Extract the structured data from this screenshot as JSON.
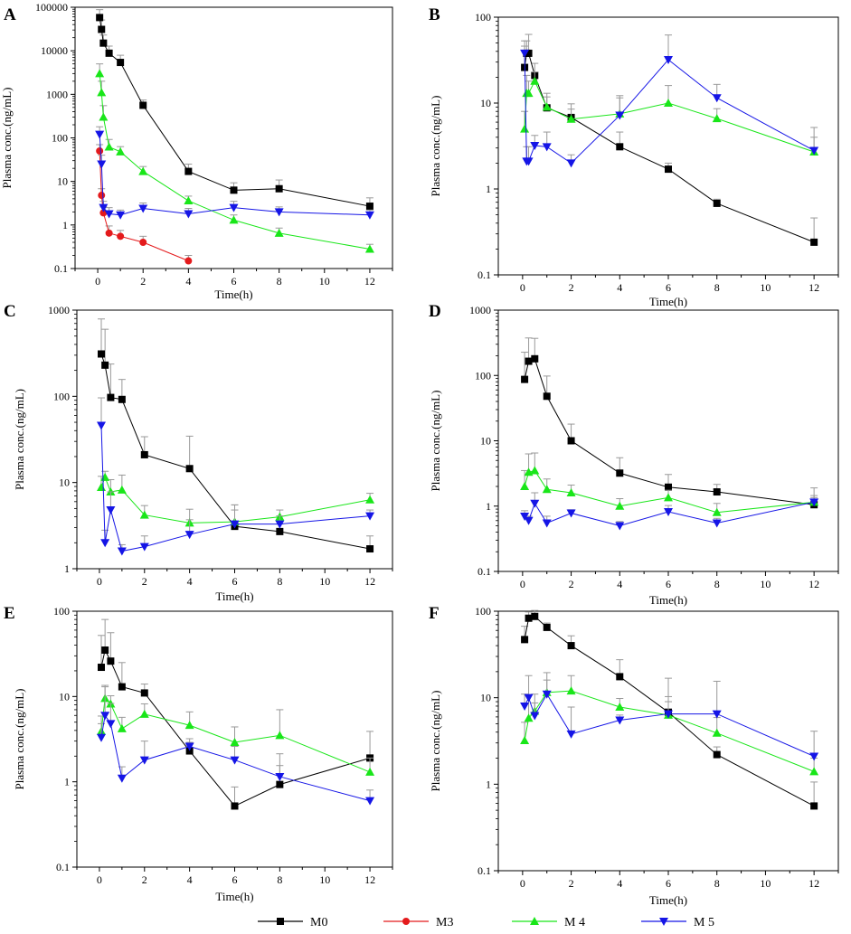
{
  "figure": {
    "legend": [
      {
        "name": "M0",
        "label": "M0",
        "color": "#000000",
        "marker": "square"
      },
      {
        "name": "M3",
        "label": "M3",
        "color": "#e41a1c",
        "marker": "circle"
      },
      {
        "name": "M4",
        "label": "M 4",
        "color": "#19e619",
        "marker": "triangle-up"
      },
      {
        "name": "M5",
        "label": "M 5",
        "color": "#1515e6",
        "marker": "triangle-down"
      }
    ],
    "colors": {
      "M0": "#000000",
      "M3": "#e41a1c",
      "M4": "#19e619",
      "M5": "#1515e6",
      "error_line": "#999999"
    }
  },
  "chart_data": [
    {
      "panel": "A",
      "type": "line",
      "yscale": "log",
      "xlabel": "Time(h)",
      "ylabel": "Plasma conc.(ng/mL)",
      "xlim": [
        -1,
        13
      ],
      "xticks": [
        0,
        2,
        4,
        6,
        8,
        10,
        12
      ],
      "ylim": [
        0.1,
        100000
      ],
      "yticks": [
        0.1,
        1,
        10,
        100,
        1000,
        10000,
        100000
      ],
      "ytick_labels": [
        "0.1",
        "1",
        "10",
        "100",
        "1000",
        "10000",
        "100000"
      ],
      "series": [
        {
          "name": "M0",
          "x": [
            0.083,
            0.167,
            0.25,
            0.5,
            1,
            2,
            4,
            6,
            8,
            12
          ],
          "y": [
            58000,
            31000,
            15000,
            8800,
            5400,
            560,
            17,
            6.3,
            6.8,
            2.7
          ],
          "err": [
            30000,
            20000,
            8000,
            4000,
            2500,
            180,
            8,
            3,
            4,
            1.5
          ]
        },
        {
          "name": "M3",
          "x": [
            0.083,
            0.167,
            0.25,
            0.5,
            1,
            2,
            4
          ],
          "y": [
            50,
            4.8,
            1.9,
            0.65,
            0.55,
            0.4,
            0.15
          ],
          "err": [
            20,
            2,
            0.7,
            0.3,
            0.2,
            0.15,
            0.05
          ]
        },
        {
          "name": "M4",
          "x": [
            0.083,
            0.167,
            0.25,
            0.5,
            1,
            2,
            4,
            6,
            8,
            12
          ],
          "y": [
            3000,
            1100,
            300,
            62,
            48,
            17,
            3.6,
            1.3,
            0.65,
            0.28
          ],
          "err": [
            2000,
            900,
            250,
            30,
            15,
            5,
            1,
            0.4,
            0.2,
            0.08
          ]
        },
        {
          "name": "M5",
          "x": [
            0.083,
            0.167,
            0.25,
            0.5,
            1,
            2,
            4,
            6,
            8,
            12
          ],
          "y": [
            120,
            25,
            2.5,
            1.8,
            1.7,
            2.4,
            1.8,
            2.5,
            2.0,
            1.7
          ],
          "err": [
            60,
            15,
            1.0,
            0.7,
            0.5,
            0.8,
            0.6,
            1.0,
            0.6,
            0.5
          ]
        }
      ]
    },
    {
      "panel": "B",
      "type": "line",
      "yscale": "log",
      "xlabel": "Time(h)",
      "ylabel": "Plasma conc.(ng/mL)",
      "xlim": [
        -1,
        13
      ],
      "xticks": [
        0,
        2,
        4,
        6,
        8,
        10,
        12
      ],
      "ylim": [
        0.1,
        100
      ],
      "yticks": [
        0.1,
        1,
        10,
        100
      ],
      "ytick_labels": [
        "0.1",
        "1",
        "10",
        "100"
      ],
      "series": [
        {
          "name": "M0",
          "x": [
            0.083,
            0.167,
            0.25,
            0.5,
            1,
            2,
            4,
            6,
            8,
            12
          ],
          "y": [
            26,
            38,
            38,
            21,
            8.8,
            6.8,
            3.1,
            1.7,
            0.68,
            0.24
          ],
          "err": [
            20,
            15,
            25,
            8,
            3,
            3,
            1.5,
            0.3,
            0.08,
            0.22
          ]
        },
        {
          "name": "M4",
          "x": [
            0.083,
            0.167,
            0.25,
            0.5,
            1,
            2,
            4,
            6,
            8,
            12
          ],
          "y": [
            5.0,
            13,
            13,
            18,
            9.0,
            6.5,
            7.5,
            10,
            6.6,
            2.7
          ],
          "err": [
            3,
            8,
            5,
            5,
            4,
            2,
            4,
            6,
            2,
            2.5
          ]
        },
        {
          "name": "M5",
          "x": [
            0.083,
            0.167,
            0.25,
            0.5,
            1,
            2,
            4,
            6,
            8,
            12
          ],
          "y": [
            38,
            2.1,
            2.1,
            3.2,
            3.1,
            2.0,
            7.2,
            32,
            11.5,
            2.8
          ],
          "err": [
            15,
            1,
            1,
            1,
            1.5,
            0.5,
            5,
            30,
            5,
            1.2
          ]
        }
      ]
    },
    {
      "panel": "C",
      "type": "line",
      "yscale": "log",
      "xlabel": "Time(h)",
      "ylabel": "Plasma conc.(ng/mL)",
      "xlim": [
        -1,
        13
      ],
      "xticks": [
        0,
        2,
        4,
        6,
        8,
        10,
        12
      ],
      "ylim": [
        1,
        1000
      ],
      "yticks": [
        1,
        10,
        100,
        1000
      ],
      "ytick_labels": [
        "1",
        "10",
        "100",
        "1000"
      ],
      "series": [
        {
          "name": "M0",
          "x": [
            0.083,
            0.25,
            0.5,
            1,
            2,
            4,
            6,
            8,
            12
          ],
          "y": [
            310,
            230,
            97,
            92,
            21,
            14.5,
            3.1,
            2.7,
            1.7
          ],
          "err": [
            480,
            370,
            140,
            65,
            13,
            20,
            2.4,
            0.6,
            0.7
          ]
        },
        {
          "name": "M4",
          "x": [
            0.083,
            0.25,
            0.5,
            1,
            2,
            4,
            6,
            8,
            12
          ],
          "y": [
            8.8,
            11.5,
            7.8,
            8.2,
            4.2,
            3.4,
            3.5,
            4.0,
            6.3
          ],
          "err": [
            3,
            2,
            3,
            4,
            1.2,
            1.5,
            2,
            0.8,
            1.2
          ]
        },
        {
          "name": "M5",
          "x": [
            0.083,
            0.25,
            0.5,
            1,
            2,
            4,
            6,
            8,
            12
          ],
          "y": [
            46,
            2.0,
            4.8,
            1.6,
            1.8,
            2.5,
            3.3,
            3.3,
            4.1
          ],
          "err": [
            50,
            0.8,
            3,
            0.3,
            0.6,
            1.2,
            1.5,
            0.8,
            0.7
          ]
        }
      ]
    },
    {
      "panel": "D",
      "type": "line",
      "yscale": "log",
      "xlabel": "Time(h)",
      "ylabel": "Plasma conc.(ng/mL)",
      "xlim": [
        -1,
        13
      ],
      "xticks": [
        0,
        2,
        4,
        6,
        8,
        10,
        12
      ],
      "ylim": [
        0.1,
        1000
      ],
      "yticks": [
        0.1,
        1,
        10,
        100,
        1000
      ],
      "ytick_labels": [
        "0.1",
        "1",
        "10",
        "100",
        "1000"
      ],
      "series": [
        {
          "name": "M0",
          "x": [
            0.083,
            0.25,
            0.5,
            1,
            2,
            4,
            6,
            8,
            12
          ],
          "y": [
            87,
            165,
            180,
            48,
            10,
            3.2,
            1.95,
            1.65,
            1.05
          ],
          "err": [
            140,
            210,
            190,
            50,
            8,
            2.3,
            1.1,
            0.5,
            0.3
          ]
        },
        {
          "name": "M4",
          "x": [
            0.083,
            0.25,
            0.5,
            1,
            2,
            4,
            6,
            8,
            12
          ],
          "y": [
            2.0,
            3.3,
            3.5,
            1.8,
            1.6,
            1.0,
            1.35,
            0.8,
            1.15
          ],
          "err": [
            1.5,
            3,
            3,
            0.8,
            0.5,
            0.3,
            0.4,
            0.3,
            0.75
          ]
        },
        {
          "name": "M5",
          "x": [
            0.083,
            0.25,
            0.5,
            1,
            2,
            4,
            6,
            8,
            12
          ],
          "y": [
            0.7,
            0.6,
            1.1,
            0.55,
            0.78,
            0.5,
            0.82,
            0.55,
            1.15
          ],
          "err": [
            0.15,
            0.1,
            0.5,
            0.15,
            0.1,
            0.08,
            0.2,
            0.1,
            0.3
          ]
        }
      ]
    },
    {
      "panel": "E",
      "type": "line",
      "yscale": "log",
      "xlabel": "Time(h)",
      "ylabel": "Plasma conc.(ng/mL)",
      "xlim": [
        -1,
        13
      ],
      "xticks": [
        0,
        2,
        4,
        6,
        8,
        10,
        12
      ],
      "ylim": [
        0.1,
        100
      ],
      "yticks": [
        0.1,
        1,
        10,
        100
      ],
      "ytick_labels": [
        "0.1",
        "1",
        "10",
        "100"
      ],
      "series": [
        {
          "name": "M0",
          "x": [
            0.083,
            0.25,
            0.5,
            1,
            2,
            4,
            6,
            8,
            12
          ],
          "y": [
            22,
            35,
            26,
            13,
            11,
            2.3,
            0.52,
            0.93,
            1.9
          ],
          "err": [
            30,
            45,
            30,
            12,
            3,
            0.6,
            0.35,
            1.2,
            2
          ]
        },
        {
          "name": "M4",
          "x": [
            0.083,
            0.25,
            0.5,
            1,
            2,
            4,
            6,
            8,
            12
          ],
          "y": [
            3.9,
            9.5,
            8.2,
            4.2,
            6.2,
            4.6,
            2.9,
            3.5,
            1.3
          ],
          "err": [
            2,
            4,
            2,
            1.5,
            2,
            2,
            1.5,
            3.5,
            0.6
          ]
        },
        {
          "name": "M5",
          "x": [
            0.083,
            0.25,
            0.5,
            1,
            2,
            4,
            6,
            8,
            12
          ],
          "y": [
            3.3,
            6.0,
            4.8,
            1.1,
            1.8,
            2.6,
            1.8,
            1.15,
            0.6
          ],
          "err": [
            1.5,
            7,
            3.5,
            0.4,
            1.2,
            0.6,
            0.8,
            0.4,
            0.2
          ]
        }
      ]
    },
    {
      "panel": "F",
      "type": "line",
      "yscale": "log",
      "xlabel": "Time(h)",
      "ylabel": "Plasma conc.(ng/mL)",
      "xlim": [
        -1,
        13
      ],
      "xticks": [
        0,
        2,
        4,
        6,
        8,
        10,
        12
      ],
      "ylim": [
        0.1,
        100
      ],
      "yticks": [
        0.1,
        1,
        10,
        100
      ],
      "ytick_labels": [
        "0.1",
        "1",
        "10",
        "100"
      ],
      "series": [
        {
          "name": "M0",
          "x": [
            0.083,
            0.25,
            0.5,
            1,
            2,
            4,
            6,
            8,
            12
          ],
          "y": [
            47,
            83,
            87,
            65,
            40,
            17.5,
            6.8,
            2.2,
            0.56
          ],
          "err": [
            20,
            15,
            15,
            8,
            12,
            10,
            10,
            0.5,
            0.5
          ]
        },
        {
          "name": "M4",
          "x": [
            0.083,
            0.25,
            0.5,
            1,
            2,
            4,
            6,
            8,
            12
          ],
          "y": [
            3.2,
            5.8,
            7.0,
            11.5,
            12,
            7.8,
            6.3,
            3.9,
            1.4
          ],
          "err": [
            2,
            5,
            4,
            8,
            6,
            2,
            4,
            2,
            0.6
          ]
        },
        {
          "name": "M5",
          "x": [
            0.083,
            0.25,
            0.5,
            1,
            2,
            4,
            6,
            8,
            12
          ],
          "y": [
            8.0,
            10,
            6.2,
            11,
            3.8,
            5.5,
            6.5,
            6.5,
            2.1
          ],
          "err": [
            3,
            8,
            2.5,
            5,
            4,
            0.8,
            2.5,
            9,
            2
          ]
        }
      ]
    }
  ]
}
